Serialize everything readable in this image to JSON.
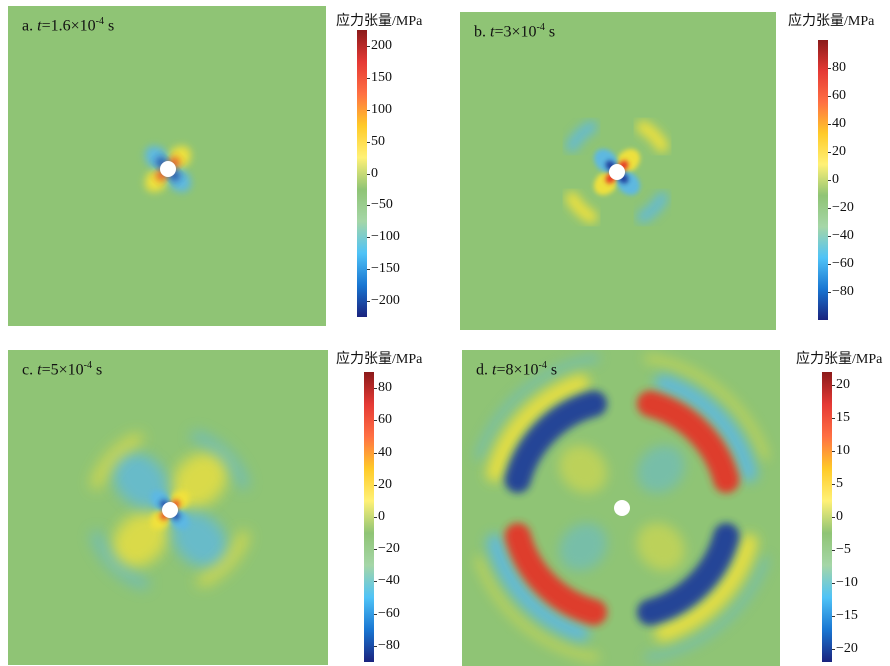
{
  "chart_data": [
    {
      "type": "heatmap",
      "panel_label": "a.",
      "time_var": "t",
      "time_value": "=1.6×10",
      "time_exp": "-4",
      "time_unit": "s",
      "colorbar_title": "应力张量/MPa",
      "colorbar_range": [
        -225,
        225
      ],
      "colorbar_ticks": [
        "200",
        "150",
        "100",
        "50",
        "0",
        "−50",
        "−100",
        "−150",
        "−200"
      ],
      "colorbar_tick_values": [
        200,
        150,
        100,
        50,
        0,
        -50,
        -100,
        -150,
        -200
      ],
      "colormap": [
        "#1a237e",
        "#1976d2",
        "#4fc3f7",
        "#a5d6a7",
        "#8fc475",
        "#fff176",
        "#ffca28",
        "#ff7043",
        "#e53935",
        "#8b1a1a"
      ]
    },
    {
      "type": "heatmap",
      "panel_label": "b.",
      "time_var": "t",
      "time_value": "=3×10",
      "time_exp": "-4",
      "time_unit": "s",
      "colorbar_title": "应力张量/MPa",
      "colorbar_range": [
        -100,
        100
      ],
      "colorbar_ticks": [
        "80",
        "60",
        "40",
        "20",
        "0",
        "−20",
        "−40",
        "−60",
        "−80"
      ],
      "colorbar_tick_values": [
        80,
        60,
        40,
        20,
        0,
        -20,
        -40,
        -60,
        -80
      ],
      "colormap": [
        "#1a237e",
        "#1976d2",
        "#4fc3f7",
        "#a5d6a7",
        "#8fc475",
        "#fff176",
        "#ffca28",
        "#ff7043",
        "#e53935",
        "#8b1a1a"
      ]
    },
    {
      "type": "heatmap",
      "panel_label": "c.",
      "time_var": "t",
      "time_value": "=5×10",
      "time_exp": "-4",
      "time_unit": "s",
      "colorbar_title": "应力张量/MPa",
      "colorbar_range": [
        -90,
        90
      ],
      "colorbar_ticks": [
        "80",
        "60",
        "40",
        "20",
        "0",
        "−20",
        "−40",
        "−60",
        "−80"
      ],
      "colorbar_tick_values": [
        80,
        60,
        40,
        20,
        0,
        -20,
        -40,
        -60,
        -80
      ],
      "colormap": [
        "#1a237e",
        "#1976d2",
        "#4fc3f7",
        "#a5d6a7",
        "#8fc475",
        "#fff176",
        "#ffca28",
        "#ff7043",
        "#e53935",
        "#8b1a1a"
      ]
    },
    {
      "type": "heatmap",
      "panel_label": "d.",
      "time_var": "t",
      "time_value": "=8×10",
      "time_exp": "-4",
      "time_unit": "s",
      "colorbar_title": "应力张量/MPa",
      "colorbar_range": [
        -22,
        22
      ],
      "colorbar_ticks": [
        "20",
        "15",
        "10",
        "5",
        "0",
        "−5",
        "−10",
        "−15",
        "−20"
      ],
      "colorbar_tick_values": [
        20,
        15,
        10,
        5,
        0,
        -5,
        -10,
        -15,
        -20
      ],
      "colormap": [
        "#1a237e",
        "#1976d2",
        "#4fc3f7",
        "#a5d6a7",
        "#8fc475",
        "#fff176",
        "#ffca28",
        "#ff7043",
        "#e53935",
        "#8b1a1a"
      ]
    }
  ],
  "colors": {
    "background_field": "#8fc475",
    "hole": "#ffffff",
    "compression_strong": "#1a3a9a",
    "compression_weak": "#5cb8e6",
    "tension_weak": "#f3e23a",
    "tension_strong": "#e53226"
  }
}
